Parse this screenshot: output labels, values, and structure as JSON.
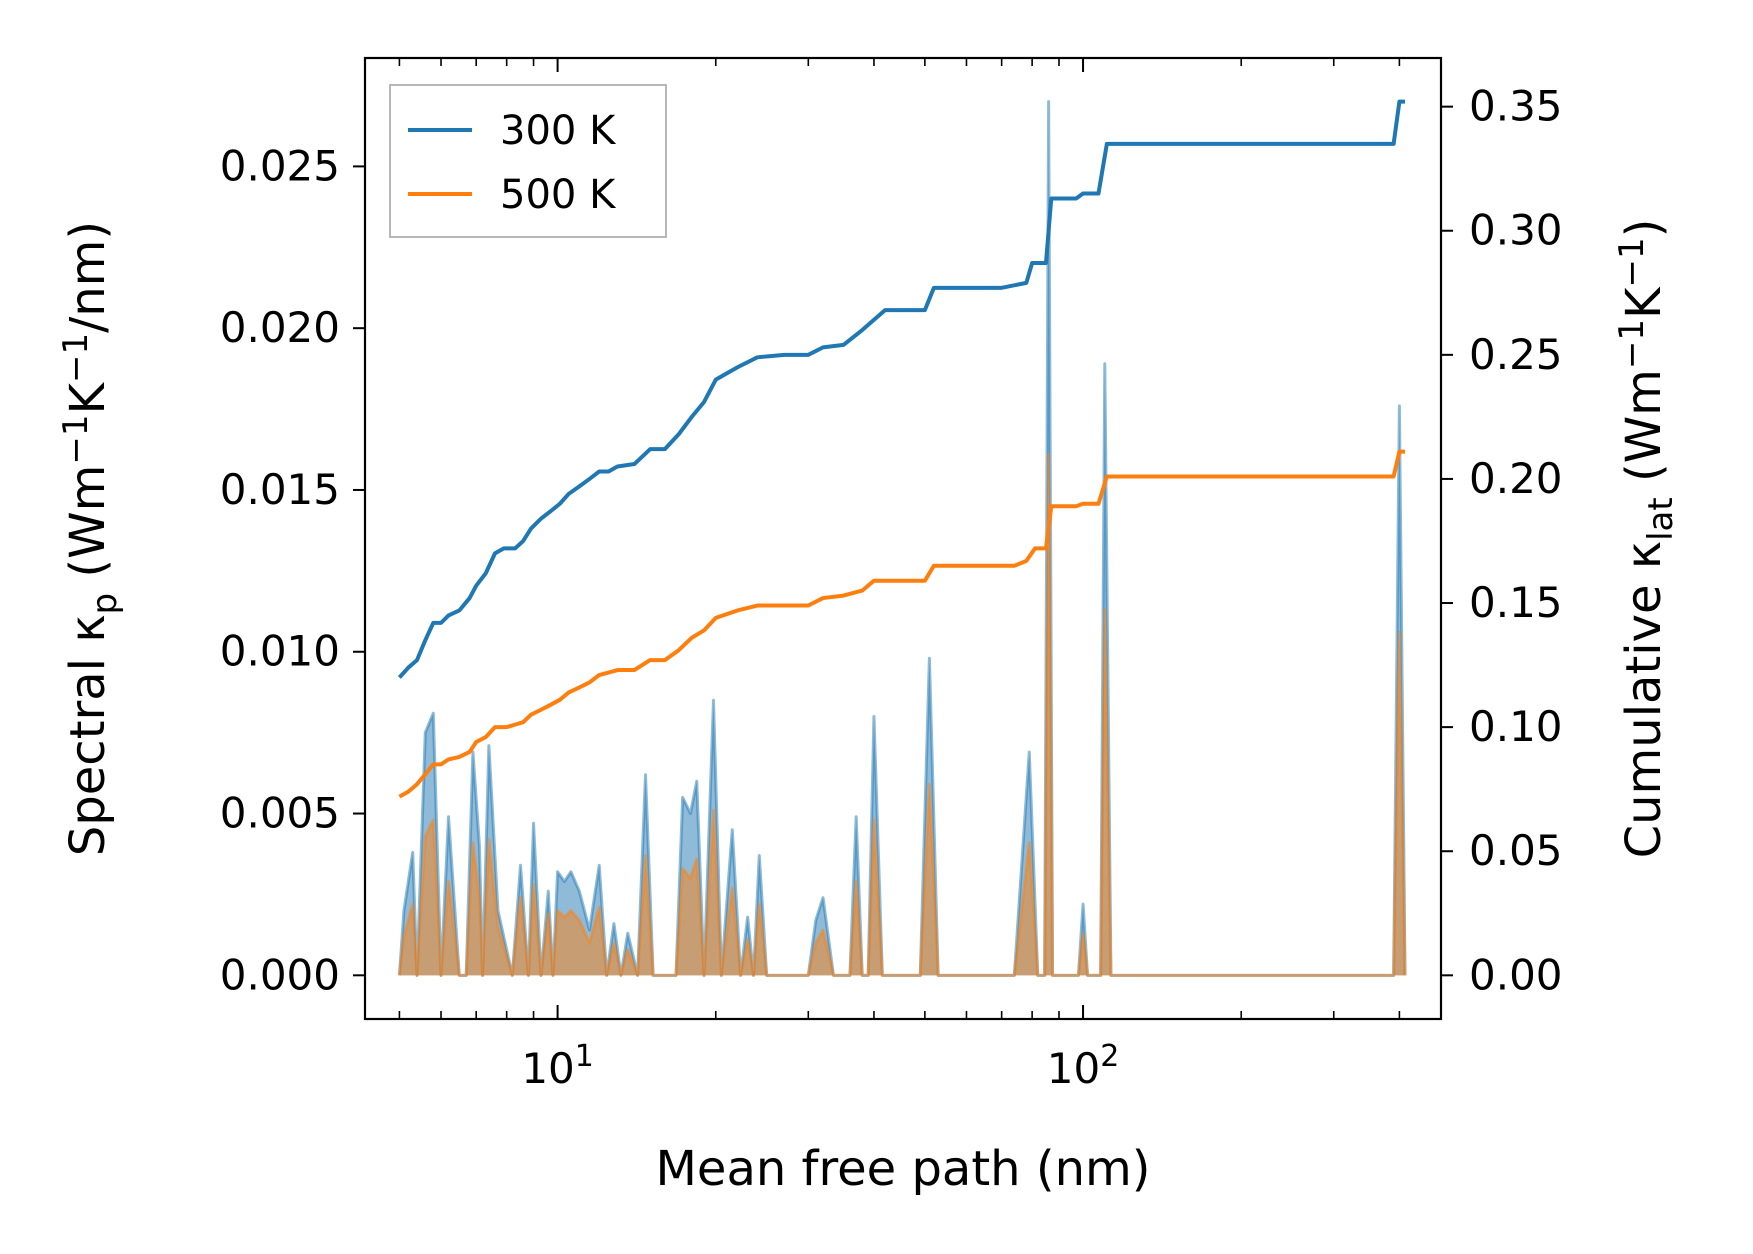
{
  "chart_data": {
    "type": "line",
    "x_scale": "log",
    "xlim": [
      4.3,
      480
    ],
    "xlabel": "Mean free path (nm)",
    "x_ticks": [
      {
        "value": 10,
        "base": "10",
        "exp": "1"
      },
      {
        "value": 100,
        "base": "10",
        "exp": "2"
      }
    ],
    "left_axis": {
      "label_parts": [
        "Spectral κ",
        "p",
        " (Wm",
        "−1",
        "K",
        "−1",
        "/nm)"
      ],
      "ylim": [
        -0.00135,
        0.02835
      ],
      "ticks": [
        {
          "value": 0.0,
          "label": "0.000"
        },
        {
          "value": 0.005,
          "label": "0.005"
        },
        {
          "value": 0.01,
          "label": "0.010"
        },
        {
          "value": 0.015,
          "label": "0.015"
        },
        {
          "value": 0.02,
          "label": "0.020"
        },
        {
          "value": 0.025,
          "label": "0.025"
        }
      ]
    },
    "right_axis": {
      "label_parts": [
        "Cumulative κ",
        "lat",
        " (Wm",
        "−1",
        "K",
        "−1",
        ")"
      ],
      "ylim": [
        -0.0176,
        0.3696
      ],
      "ticks": [
        {
          "value": 0.0,
          "label": "0.00"
        },
        {
          "value": 0.05,
          "label": "0.05"
        },
        {
          "value": 0.1,
          "label": "0.10"
        },
        {
          "value": 0.15,
          "label": "0.15"
        },
        {
          "value": 0.2,
          "label": "0.20"
        },
        {
          "value": 0.25,
          "label": "0.25"
        },
        {
          "value": 0.3,
          "label": "0.30"
        },
        {
          "value": 0.35,
          "label": "0.35"
        }
      ]
    },
    "legend": {
      "position": "top-left"
    },
    "series": [
      {
        "name": "300 K",
        "color": "#1f77b4",
        "cumulative": [
          [
            5.0,
            0.12
          ],
          [
            5.2,
            0.124
          ],
          [
            5.4,
            0.127
          ],
          [
            5.6,
            0.135
          ],
          [
            5.8,
            0.142
          ],
          [
            6.0,
            0.142
          ],
          [
            6.2,
            0.145
          ],
          [
            6.5,
            0.147
          ],
          [
            6.8,
            0.152
          ],
          [
            7.0,
            0.157
          ],
          [
            7.3,
            0.162
          ],
          [
            7.6,
            0.17
          ],
          [
            7.9,
            0.172
          ],
          [
            8.3,
            0.172
          ],
          [
            8.6,
            0.175
          ],
          [
            8.9,
            0.18
          ],
          [
            9.3,
            0.184
          ],
          [
            9.7,
            0.187
          ],
          [
            10.1,
            0.19
          ],
          [
            10.5,
            0.194
          ],
          [
            11.0,
            0.197
          ],
          [
            11.5,
            0.2
          ],
          [
            12.0,
            0.203
          ],
          [
            12.5,
            0.203
          ],
          [
            13.0,
            0.205
          ],
          [
            14.0,
            0.206
          ],
          [
            15.0,
            0.212
          ],
          [
            16.0,
            0.212
          ],
          [
            17.0,
            0.218
          ],
          [
            18.0,
            0.225
          ],
          [
            19.0,
            0.231
          ],
          [
            20.0,
            0.24
          ],
          [
            22.0,
            0.245
          ],
          [
            24.0,
            0.249
          ],
          [
            27.0,
            0.25
          ],
          [
            30.0,
            0.25
          ],
          [
            32.0,
            0.253
          ],
          [
            35.0,
            0.254
          ],
          [
            38.0,
            0.26
          ],
          [
            42.0,
            0.268
          ],
          [
            50.0,
            0.268
          ],
          [
            52.0,
            0.277
          ],
          [
            70.0,
            0.277
          ],
          [
            78.0,
            0.279
          ],
          [
            80.0,
            0.287
          ],
          [
            85.0,
            0.287
          ],
          [
            87.0,
            0.313
          ],
          [
            97.0,
            0.313
          ],
          [
            100.0,
            0.315
          ],
          [
            107.0,
            0.315
          ],
          [
            111.0,
            0.335
          ],
          [
            390.0,
            0.335
          ],
          [
            400.0,
            0.352
          ],
          [
            410.0,
            0.352
          ]
        ],
        "spectral": [
          [
            5.0,
            0.0
          ],
          [
            5.1,
            0.002
          ],
          [
            5.3,
            0.0038
          ],
          [
            5.4,
            0.0
          ],
          [
            5.6,
            0.0075
          ],
          [
            5.8,
            0.0081
          ],
          [
            6.0,
            0.0
          ],
          [
            6.2,
            0.0049
          ],
          [
            6.5,
            0.0
          ],
          [
            6.7,
            0.0
          ],
          [
            6.9,
            0.0069
          ],
          [
            7.1,
            0.004
          ],
          [
            7.2,
            0.0
          ],
          [
            7.4,
            0.0071
          ],
          [
            7.7,
            0.002
          ],
          [
            8.2,
            0.0
          ],
          [
            8.5,
            0.0034
          ],
          [
            8.8,
            0.0
          ],
          [
            9.0,
            0.0047
          ],
          [
            9.3,
            0.0
          ],
          [
            9.6,
            0.0026
          ],
          [
            9.8,
            0.0
          ],
          [
            10.0,
            0.0032
          ],
          [
            10.3,
            0.0029
          ],
          [
            10.6,
            0.0032
          ],
          [
            11.0,
            0.0026
          ],
          [
            11.5,
            0.0014
          ],
          [
            12.0,
            0.0034
          ],
          [
            12.4,
            0.0
          ],
          [
            12.8,
            0.0016
          ],
          [
            13.2,
            0.0
          ],
          [
            13.6,
            0.0013
          ],
          [
            14.2,
            0.0
          ],
          [
            14.7,
            0.0062
          ],
          [
            15.2,
            0.0
          ],
          [
            16.0,
            0.0
          ],
          [
            16.8,
            0.0
          ],
          [
            17.3,
            0.0055
          ],
          [
            17.9,
            0.005
          ],
          [
            18.4,
            0.006
          ],
          [
            19.0,
            0.0
          ],
          [
            19.8,
            0.0085
          ],
          [
            20.5,
            0.0
          ],
          [
            21.5,
            0.0045
          ],
          [
            22.3,
            0.0
          ],
          [
            23.0,
            0.0018
          ],
          [
            23.6,
            0.0
          ],
          [
            24.2,
            0.0037
          ],
          [
            25.0,
            0.0
          ],
          [
            30.0,
            0.0
          ],
          [
            31.0,
            0.0017
          ],
          [
            32.0,
            0.0024
          ],
          [
            33.5,
            0.0
          ],
          [
            36.0,
            0.0
          ],
          [
            37.0,
            0.0049
          ],
          [
            38.0,
            0.0
          ],
          [
            39.0,
            0.0
          ],
          [
            40.0,
            0.008
          ],
          [
            41.5,
            0.0
          ],
          [
            49.0,
            0.0
          ],
          [
            51.0,
            0.0098
          ],
          [
            53.0,
            0.0
          ],
          [
            74.0,
            0.0
          ],
          [
            79.0,
            0.0069
          ],
          [
            82.0,
            0.0
          ],
          [
            84.5,
            0.0
          ],
          [
            86.0,
            0.027
          ],
          [
            87.5,
            0.0
          ],
          [
            98.0,
            0.0
          ],
          [
            100.0,
            0.0022
          ],
          [
            102.0,
            0.0
          ],
          [
            108.0,
            0.0
          ],
          [
            110.0,
            0.0189
          ],
          [
            113.0,
            0.0
          ],
          [
            390.0,
            0.0
          ],
          [
            400.0,
            0.0176
          ],
          [
            410.0,
            0.0
          ]
        ]
      },
      {
        "name": "500 K",
        "color": "#ff7f0e",
        "cumulative": [
          [
            5.0,
            0.072
          ],
          [
            5.2,
            0.074
          ],
          [
            5.4,
            0.077
          ],
          [
            5.6,
            0.081
          ],
          [
            5.8,
            0.085
          ],
          [
            6.0,
            0.085
          ],
          [
            6.2,
            0.087
          ],
          [
            6.5,
            0.088
          ],
          [
            6.8,
            0.09
          ],
          [
            7.0,
            0.094
          ],
          [
            7.3,
            0.096
          ],
          [
            7.6,
            0.1
          ],
          [
            8.0,
            0.1
          ],
          [
            8.3,
            0.101
          ],
          [
            8.6,
            0.102
          ],
          [
            8.9,
            0.105
          ],
          [
            9.3,
            0.107
          ],
          [
            9.7,
            0.109
          ],
          [
            10.1,
            0.111
          ],
          [
            10.5,
            0.114
          ],
          [
            11.0,
            0.116
          ],
          [
            11.5,
            0.118
          ],
          [
            12.0,
            0.121
          ],
          [
            12.5,
            0.122
          ],
          [
            13.0,
            0.123
          ],
          [
            14.0,
            0.123
          ],
          [
            15.0,
            0.127
          ],
          [
            16.0,
            0.127
          ],
          [
            17.0,
            0.131
          ],
          [
            18.0,
            0.136
          ],
          [
            19.0,
            0.139
          ],
          [
            20.0,
            0.144
          ],
          [
            22.0,
            0.147
          ],
          [
            24.0,
            0.149
          ],
          [
            27.0,
            0.149
          ],
          [
            30.0,
            0.149
          ],
          [
            32.0,
            0.152
          ],
          [
            35.0,
            0.153
          ],
          [
            38.0,
            0.155
          ],
          [
            40.0,
            0.159
          ],
          [
            50.0,
            0.159
          ],
          [
            52.0,
            0.165
          ],
          [
            74.0,
            0.165
          ],
          [
            78.0,
            0.167
          ],
          [
            81.0,
            0.172
          ],
          [
            85.0,
            0.172
          ],
          [
            87.0,
            0.189
          ],
          [
            97.0,
            0.189
          ],
          [
            100.0,
            0.19
          ],
          [
            107.0,
            0.19
          ],
          [
            111.0,
            0.201
          ],
          [
            390.0,
            0.201
          ],
          [
            400.0,
            0.211
          ],
          [
            410.0,
            0.211
          ]
        ],
        "spectral": [
          [
            5.0,
            0.0
          ],
          [
            5.1,
            0.0012
          ],
          [
            5.3,
            0.0022
          ],
          [
            5.4,
            0.0
          ],
          [
            5.6,
            0.0043
          ],
          [
            5.8,
            0.0048
          ],
          [
            6.0,
            0.0
          ],
          [
            6.2,
            0.0029
          ],
          [
            6.5,
            0.0
          ],
          [
            6.7,
            0.0
          ],
          [
            6.9,
            0.0041
          ],
          [
            7.1,
            0.0024
          ],
          [
            7.2,
            0.0
          ],
          [
            7.4,
            0.0042
          ],
          [
            7.7,
            0.0015
          ],
          [
            8.2,
            0.0
          ],
          [
            8.5,
            0.0024
          ],
          [
            8.8,
            0.0
          ],
          [
            9.0,
            0.0028
          ],
          [
            9.3,
            0.0
          ],
          [
            9.6,
            0.0019
          ],
          [
            9.8,
            0.0
          ],
          [
            10.0,
            0.002
          ],
          [
            10.3,
            0.0018
          ],
          [
            10.6,
            0.002
          ],
          [
            11.0,
            0.0017
          ],
          [
            11.5,
            0.001
          ],
          [
            12.0,
            0.0021
          ],
          [
            12.4,
            0.0
          ],
          [
            12.8,
            0.001
          ],
          [
            13.2,
            0.0
          ],
          [
            13.6,
            0.0008
          ],
          [
            14.2,
            0.0
          ],
          [
            14.7,
            0.0037
          ],
          [
            15.2,
            0.0
          ],
          [
            16.0,
            0.0
          ],
          [
            16.8,
            0.0
          ],
          [
            17.3,
            0.0033
          ],
          [
            17.9,
            0.003
          ],
          [
            18.4,
            0.0036
          ],
          [
            19.0,
            0.0
          ],
          [
            19.8,
            0.0051
          ],
          [
            20.5,
            0.0
          ],
          [
            21.5,
            0.0027
          ],
          [
            22.3,
            0.0
          ],
          [
            23.0,
            0.0011
          ],
          [
            23.6,
            0.0
          ],
          [
            24.2,
            0.0022
          ],
          [
            25.0,
            0.0
          ],
          [
            30.0,
            0.0
          ],
          [
            31.0,
            0.001
          ],
          [
            32.0,
            0.0014
          ],
          [
            33.5,
            0.0
          ],
          [
            36.0,
            0.0
          ],
          [
            37.0,
            0.0029
          ],
          [
            38.0,
            0.0
          ],
          [
            39.0,
            0.0
          ],
          [
            40.0,
            0.0048
          ],
          [
            41.5,
            0.0
          ],
          [
            49.0,
            0.0
          ],
          [
            51.0,
            0.0059
          ],
          [
            53.0,
            0.0
          ],
          [
            74.0,
            0.0
          ],
          [
            79.0,
            0.0041
          ],
          [
            82.0,
            0.0
          ],
          [
            84.5,
            0.0
          ],
          [
            86.0,
            0.0161
          ],
          [
            87.5,
            0.0
          ],
          [
            98.0,
            0.0
          ],
          [
            100.0,
            0.0013
          ],
          [
            102.0,
            0.0
          ],
          [
            108.0,
            0.0
          ],
          [
            110.0,
            0.0113
          ],
          [
            113.0,
            0.0
          ],
          [
            390.0,
            0.0
          ],
          [
            400.0,
            0.0106
          ],
          [
            410.0,
            0.0
          ]
        ]
      }
    ]
  }
}
